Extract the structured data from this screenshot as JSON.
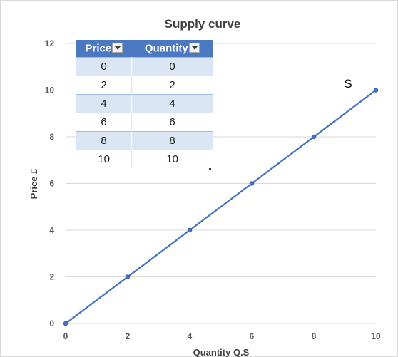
{
  "chart_data": {
    "type": "line",
    "title": "Supply curve",
    "xlabel": "Quantity Q.S",
    "ylabel": "Price £",
    "xlim": [
      0,
      10
    ],
    "ylim": [
      0,
      12
    ],
    "x_ticks": [
      0,
      2,
      4,
      6,
      8,
      10
    ],
    "y_ticks": [
      0,
      2,
      4,
      6,
      8,
      10,
      12
    ],
    "grid": "horizontal",
    "series": [
      {
        "name": "S",
        "x": [
          0,
          2,
          4,
          6,
          8,
          10
        ],
        "y": [
          0,
          2,
          4,
          6,
          8,
          10
        ],
        "color": "#4472c4"
      }
    ]
  },
  "table": {
    "headers": [
      "Price",
      "Quantity"
    ],
    "rows": [
      [
        "0",
        "0"
      ],
      [
        "2",
        "2"
      ],
      [
        "4",
        "4"
      ],
      [
        "6",
        "6"
      ],
      [
        "8",
        "8"
      ],
      [
        "10",
        "10"
      ]
    ],
    "header_color": "#4a79c2",
    "band_color": "#dbe6f5"
  },
  "colors": {
    "line": "#4472c4",
    "gridline": "#d9d9d9",
    "axis_text": "#595959"
  }
}
